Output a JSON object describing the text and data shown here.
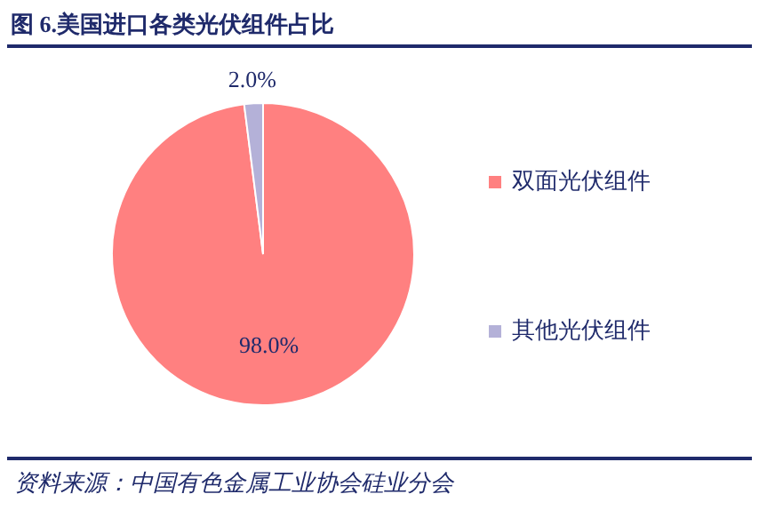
{
  "chart_data": {
    "type": "pie",
    "title": "图 6.美国进口各类光伏组件占比",
    "categories": [
      "双面光伏组件",
      "其他光伏组件"
    ],
    "values": [
      98.0,
      2.0
    ],
    "colors": [
      "#ff8080",
      "#b4b1d8"
    ],
    "value_labels": [
      "98.0%",
      "2.0%"
    ],
    "legend": "right",
    "annotations": [
      "资料来源：中国有色金属工业协会硅业分会"
    ]
  }
}
